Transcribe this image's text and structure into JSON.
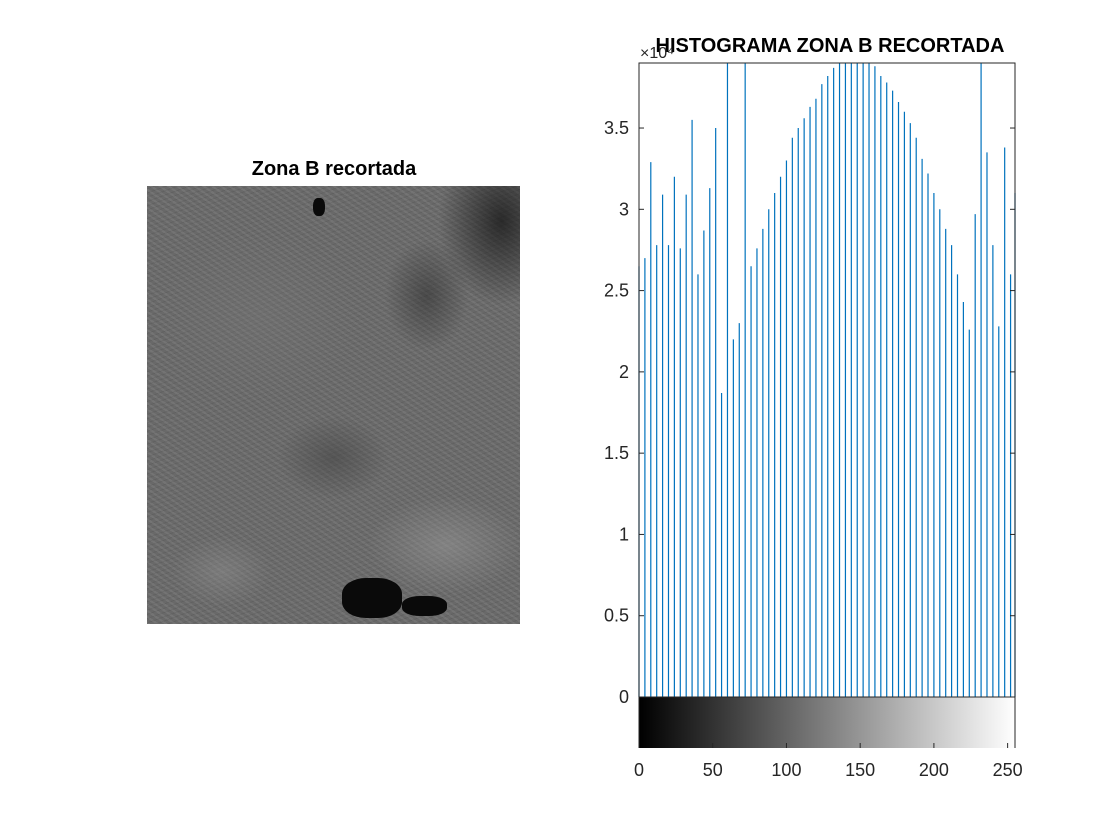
{
  "figure": {
    "image_title": "Zona B recortada",
    "histogram_title": "HISTOGRAMA ZONA B RECORTADA",
    "y_exponent_label": "×10⁴"
  },
  "colors": {
    "stem": "#0072BD",
    "axis": "#262626",
    "background": "#ffffff"
  },
  "chart_data": {
    "type": "bar",
    "title": "HISTOGRAMA ZONA B RECORTADA",
    "xlabel": "",
    "ylabel": "",
    "y_scale_exponent": 4,
    "xlim": [
      0,
      255
    ],
    "ylim": [
      0,
      39000
    ],
    "grid": false,
    "colorbar": "grayscale 0-255 below x-axis",
    "x_ticks": [
      0,
      50,
      100,
      150,
      200,
      250
    ],
    "x_tick_labels": [
      "0",
      "50",
      "100",
      "150",
      "200",
      "250"
    ],
    "y_ticks": [
      0,
      5000,
      10000,
      15000,
      20000,
      25000,
      30000,
      35000
    ],
    "y_tick_labels": [
      "0",
      "0.5",
      "1",
      "1.5",
      "2",
      "2.5",
      "3",
      "3.5"
    ],
    "x": [
      0,
      4,
      8,
      12,
      16,
      20,
      24,
      28,
      32,
      36,
      40,
      44,
      48,
      52,
      56,
      60,
      64,
      68,
      72,
      76,
      80,
      84,
      88,
      92,
      96,
      100,
      104,
      108,
      112,
      116,
      120,
      124,
      128,
      132,
      136,
      140,
      144,
      148,
      152,
      156,
      160,
      164,
      168,
      172,
      176,
      180,
      184,
      188,
      192,
      196,
      200,
      204,
      208,
      212,
      216,
      220,
      224,
      228,
      232,
      236,
      240,
      244,
      248,
      252,
      255
    ],
    "values": [
      26500,
      27000,
      32900,
      27800,
      30900,
      27800,
      32000,
      27600,
      30900,
      35500,
      26000,
      28700,
      31300,
      35000,
      18700,
      39000,
      22000,
      23000,
      39000,
      26500,
      27600,
      28800,
      30000,
      31000,
      32000,
      33000,
      34400,
      35000,
      35600,
      36300,
      36800,
      37700,
      38200,
      38700,
      39000,
      39000,
      39000,
      39000,
      39000,
      39000,
      38800,
      38200,
      37800,
      37300,
      36600,
      36000,
      35300,
      34400,
      33100,
      32200,
      31000,
      30000,
      28800,
      27800,
      26000,
      24300,
      22600,
      29700,
      39000,
      33500,
      27800,
      22800,
      33800,
      26000,
      31000
    ]
  }
}
